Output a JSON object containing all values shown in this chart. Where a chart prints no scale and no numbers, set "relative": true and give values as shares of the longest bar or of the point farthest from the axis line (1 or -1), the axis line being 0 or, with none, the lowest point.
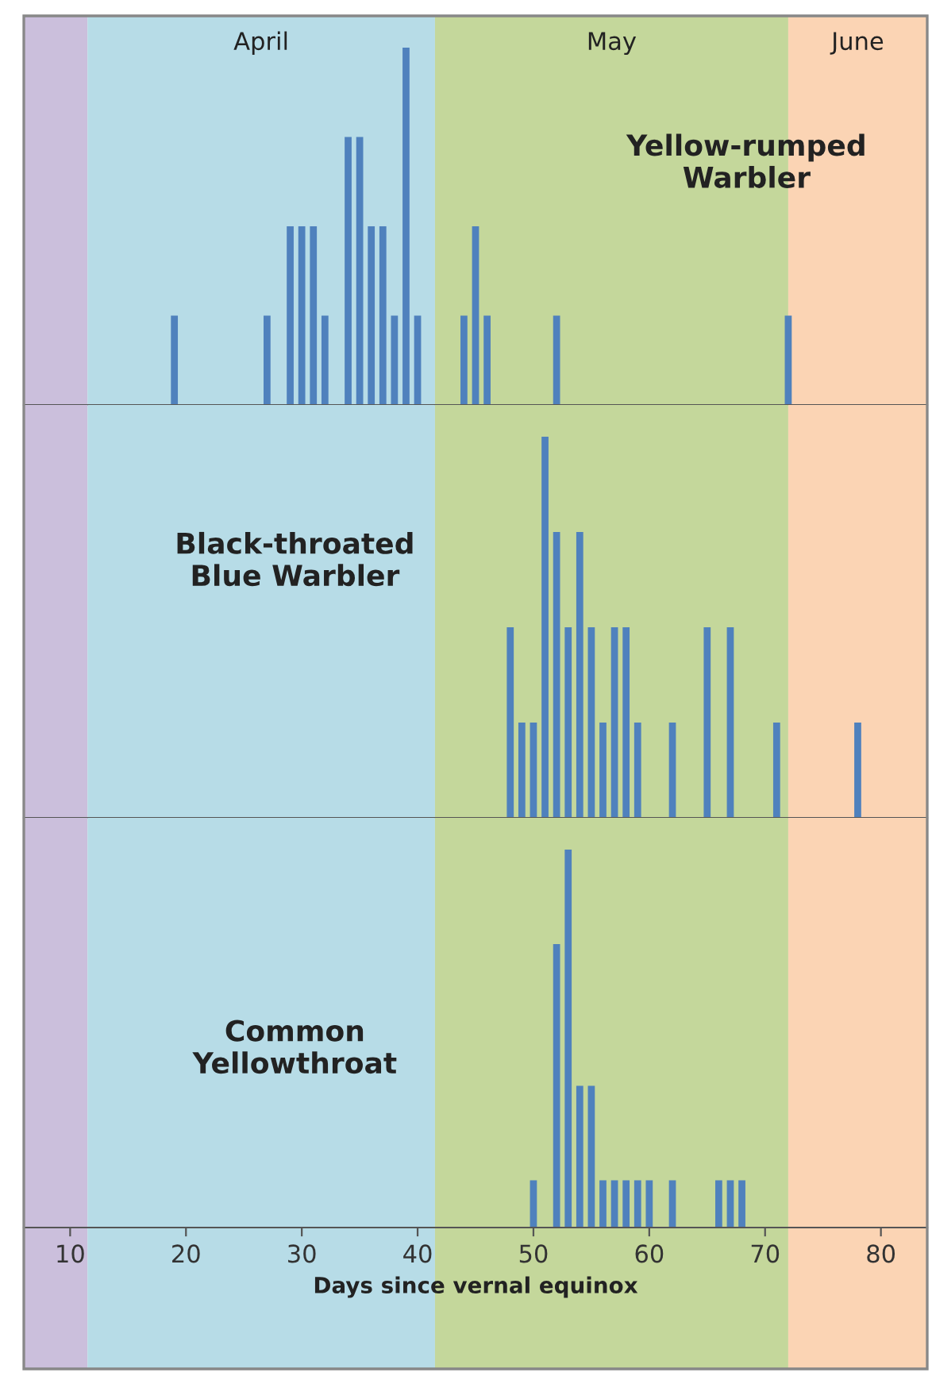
{
  "chart_data": [
    {
      "type": "bar",
      "title": "Yellow-rumped\nWarbler",
      "relative": true,
      "tick_labels": false,
      "xlim": [
        6,
        84
      ],
      "xticks": [
        10,
        20,
        30,
        40,
        50,
        60,
        70,
        80
      ],
      "grid": false,
      "legend": false,
      "x": [
        19,
        27,
        29,
        30,
        31,
        32,
        34,
        35,
        36,
        37,
        38,
        39,
        40,
        44,
        45,
        46,
        52,
        72
      ],
      "series": [
        {
          "color": "#4f81bd",
          "values": [
            0.25,
            0.25,
            0.5,
            0.5,
            0.5,
            0.25,
            0.75,
            0.75,
            0.5,
            0.5,
            0.25,
            1,
            0.25,
            0.25,
            0.5,
            0.25,
            0.25,
            0.25
          ]
        }
      ],
      "bands": [
        {
          "axis": "x",
          "from": 6,
          "to": 11.5,
          "label": null,
          "color": "#cbbfdc"
        },
        {
          "axis": "x",
          "from": 11.5,
          "to": 41.5,
          "label": "April",
          "color": "#b7dce7"
        },
        {
          "axis": "x",
          "from": 41.5,
          "to": 72,
          "label": "May",
          "color": "#c4d79b"
        },
        {
          "axis": "x",
          "from": 72,
          "to": 84,
          "label": "June",
          "color": "#fbd4b4"
        }
      ]
    },
    {
      "type": "bar",
      "title": "Black-throated\nBlue Warbler",
      "relative": true,
      "tick_labels": false,
      "xlim": [
        6,
        84
      ],
      "xticks": [
        10,
        20,
        30,
        40,
        50,
        60,
        70,
        80
      ],
      "grid": false,
      "legend": false,
      "x": [
        48,
        49,
        50,
        51,
        52,
        53,
        54,
        55,
        56,
        57,
        58,
        59,
        62,
        65,
        67,
        71,
        78
      ],
      "series": [
        {
          "color": "#4f81bd",
          "values": [
            0.5,
            0.25,
            0.25,
            1,
            0.75,
            0.5,
            0.75,
            0.5,
            0.25,
            0.5,
            0.5,
            0.25,
            0.25,
            0.5,
            0.5,
            0.25,
            0.25
          ]
        }
      ],
      "bands": [
        {
          "axis": "x",
          "from": 6,
          "to": 11.5,
          "label": null,
          "color": "#cbbfdc"
        },
        {
          "axis": "x",
          "from": 11.5,
          "to": 41.5,
          "label": null,
          "color": "#b7dce7"
        },
        {
          "axis": "x",
          "from": 41.5,
          "to": 72,
          "label": null,
          "color": "#c4d79b"
        },
        {
          "axis": "x",
          "from": 72,
          "to": 84,
          "label": null,
          "color": "#fbd4b4"
        }
      ]
    },
    {
      "type": "bar",
      "title": "Common\nYellowthroat",
      "xlabel": "Days since vernal equinox",
      "relative": true,
      "tick_labels": "x",
      "xlim": [
        6,
        84
      ],
      "xticks": [
        10,
        20,
        30,
        40,
        50,
        60,
        70,
        80
      ],
      "grid": false,
      "legend": false,
      "x": [
        50,
        52,
        53,
        54,
        55,
        56,
        57,
        58,
        59,
        60,
        62,
        66,
        67,
        68
      ],
      "series": [
        {
          "color": "#4f81bd",
          "values": [
            0.125,
            0.75,
            1,
            0.375,
            0.375,
            0.125,
            0.125,
            0.125,
            0.125,
            0.125,
            0.125,
            0.125,
            0.125,
            0.125
          ]
        }
      ],
      "bands": [
        {
          "axis": "x",
          "from": 6,
          "to": 11.5,
          "label": null,
          "color": "#cbbfdc"
        },
        {
          "axis": "x",
          "from": 11.5,
          "to": 41.5,
          "label": null,
          "color": "#b7dce7"
        },
        {
          "axis": "x",
          "from": 41.5,
          "to": 72,
          "label": null,
          "color": "#c4d79b"
        },
        {
          "axis": "x",
          "from": 72,
          "to": 84,
          "label": null,
          "color": "#fbd4b4"
        }
      ]
    }
  ]
}
